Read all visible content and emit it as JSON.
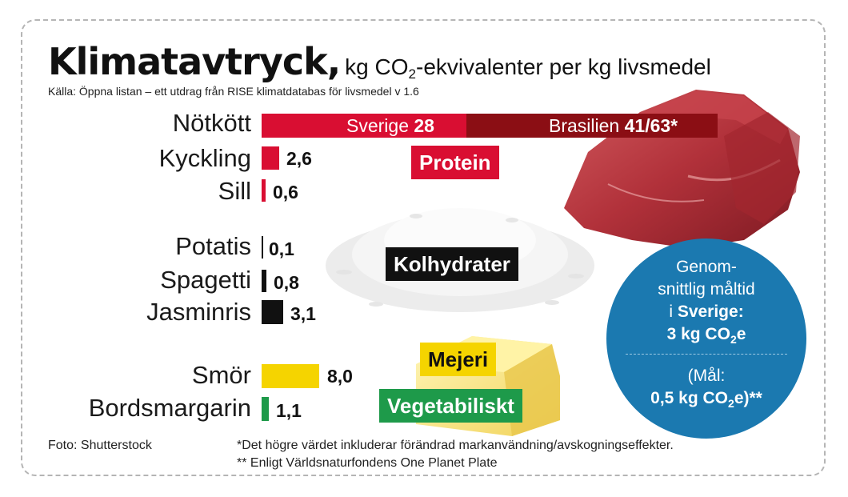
{
  "header": {
    "title": "Klimatavtryck,",
    "subtitle_pre": "kg CO",
    "subtitle_sub": "2",
    "subtitle_post": "-ekvivalenter per kg livsmedel",
    "source": "Källa: Öppna listan – ett utdrag från RISE klimatdatabas för livsmedel v 1.6"
  },
  "chart_data": {
    "type": "bar",
    "orientation": "horizontal",
    "unit": "kg CO2-ekvivalenter per kg livsmedel",
    "categories": [
      "Nötkött",
      "Kyckling",
      "Sill",
      "Potatis",
      "Spagetti",
      "Jasminris",
      "Smör",
      "Bordsmargarin"
    ],
    "values": [
      28,
      2.6,
      0.6,
      0.1,
      0.8,
      3.1,
      8.0,
      1.1
    ],
    "value_labels": [
      "28",
      "2,6",
      "0,6",
      "0,1",
      "0,8",
      "3,1",
      "8,0",
      "1,1"
    ],
    "groups": [
      {
        "name": "Protein",
        "items": [
          "Nötkött",
          "Kyckling",
          "Sill"
        ],
        "color": "#d90e32"
      },
      {
        "name": "Kolhydrater",
        "items": [
          "Potatis",
          "Spagetti",
          "Jasminris"
        ],
        "color": "#111111"
      },
      {
        "name": "Mejeri",
        "items": [
          "Smör"
        ],
        "color": "#f5d400"
      },
      {
        "name": "Vegetabiliskt",
        "items": [
          "Bordsmargarin"
        ],
        "color": "#1e9a4a"
      }
    ],
    "beef_split": {
      "sverige_label": "Sverige",
      "sverige_value": "28",
      "brasilien_label": "Brasilien",
      "brasilien_value": "41/63*",
      "sverige_color": "#d90e32",
      "brasilien_color": "#8b0e14"
    }
  },
  "categories_labels": {
    "protein": "Protein",
    "kolhydrater": "Kolhydrater",
    "mejeri": "Mejeri",
    "vegetabiliskt": "Vegetabiliskt"
  },
  "circle": {
    "line1": "Genom-",
    "line2": "snittlig måltid",
    "line3_pre": "i ",
    "line3_bold": "Sverige:",
    "line4_pre": "3 kg CO",
    "line4_sub": "2",
    "line4_post": "e",
    "line5": "(Mål:",
    "line6_pre": "0,5 kg CO",
    "line6_sub": "2",
    "line6_post": "e)**",
    "color": "#1b79b0"
  },
  "footer": {
    "photo": "Foto: Shutterstock",
    "note1": "*Det högre värdet inkluderar förändrad markanvändning/avskogningseffekter.",
    "note2": "** Enligt Världsnaturfondens One Planet Plate"
  }
}
